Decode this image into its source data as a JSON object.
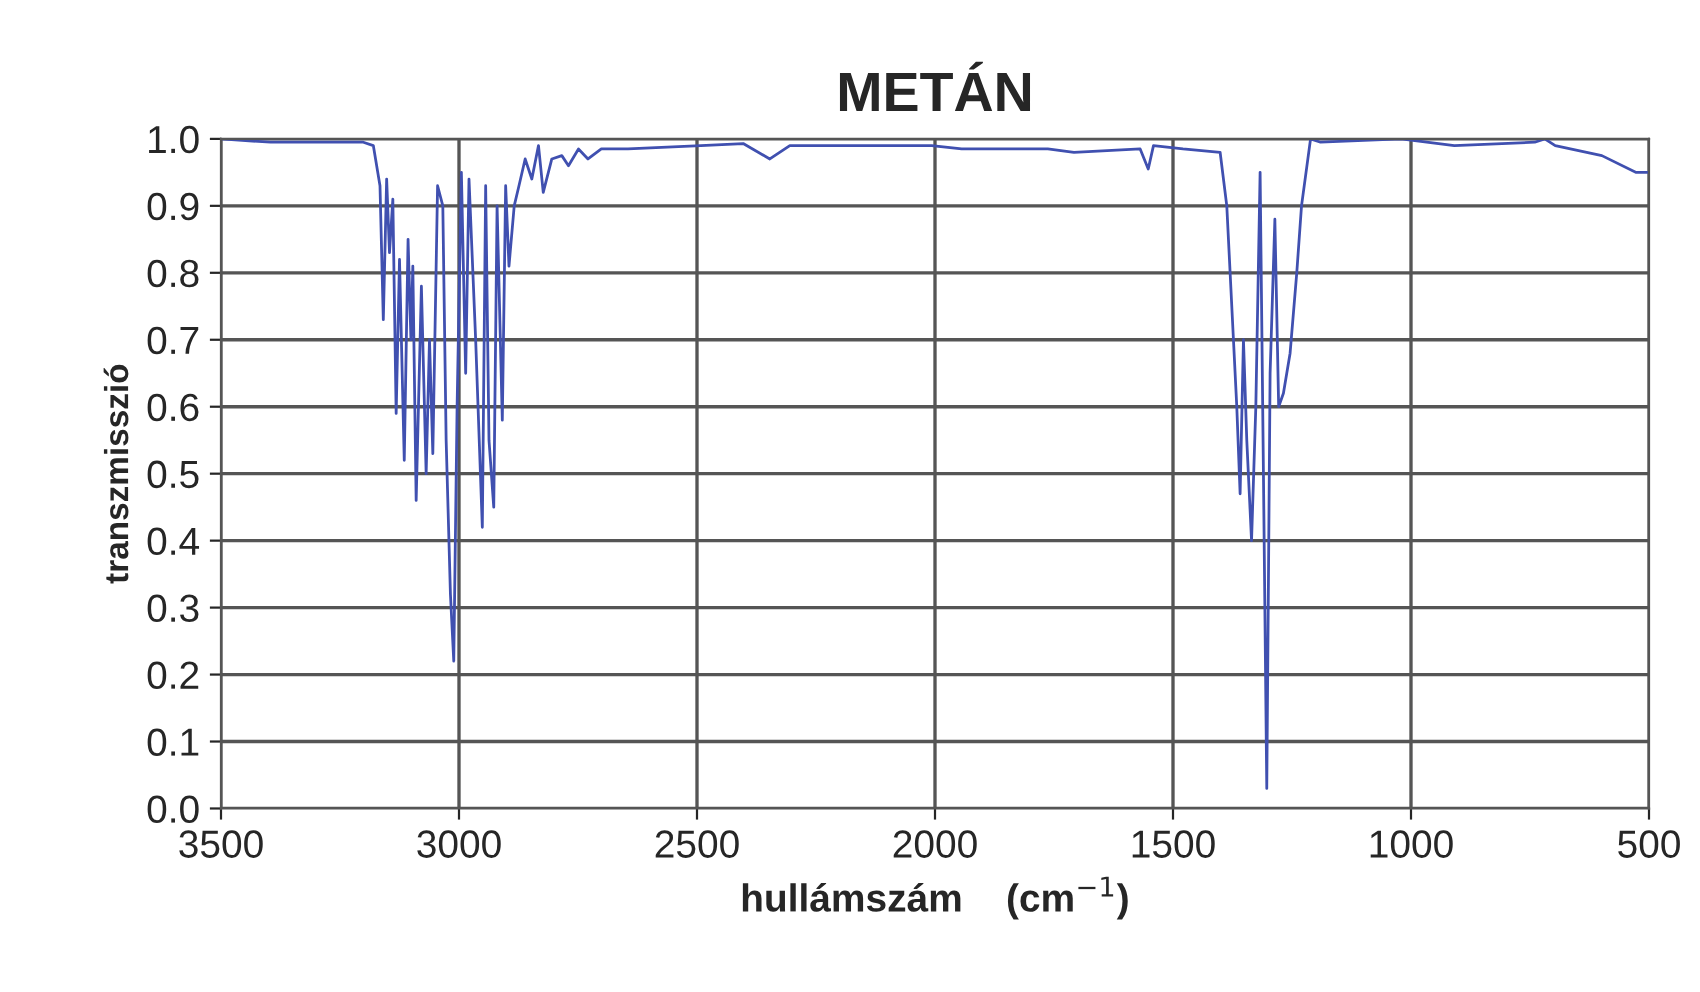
{
  "chart_data": {
    "type": "line",
    "title": "METÁN",
    "xlabel": "hullámszám    (cm$^{−1}$)",
    "ylabel": "transzmisszió",
    "xlim": [
      3500,
      500
    ],
    "xticks": [
      3500,
      3000,
      2500,
      2000,
      1500,
      1000,
      500
    ],
    "ylim": [
      0,
      1
    ],
    "yticks": [
      {
        "value": 0,
        "label": "0.0"
      },
      {
        "value": 0.1,
        "label": "0.1"
      },
      {
        "value": 0.2,
        "label": "0.2"
      },
      {
        "value": 0.3,
        "label": "0.3"
      },
      {
        "value": 0.4,
        "label": "0.4"
      },
      {
        "value": 0.5,
        "label": "0.5"
      },
      {
        "value": 0.6,
        "label": "0.6"
      },
      {
        "value": 0.7,
        "label": "0.7"
      },
      {
        "value": 0.8,
        "label": "0.8"
      },
      {
        "value": 0.9,
        "label": "0.9"
      },
      {
        "value": 1,
        "label": "1.0"
      }
    ],
    "grid": true,
    "marker": "none",
    "line_style": "solid",
    "series": [
      {
        "color": "#4050b0",
        "x": [
          3500,
          3396,
          3201,
          3180,
          3166,
          3159,
          3152,
          3146,
          3139,
          3132,
          3125,
          3115,
          3107,
          3101,
          3097,
          3090,
          3079,
          3069,
          3062,
          3055,
          3045,
          3034,
          3027,
          3018,
          3011,
          3004,
          2995,
          2986,
          2979,
          2965,
          2951,
          2944,
          2937,
          2927,
          2920,
          2909,
          2902,
          2895,
          2884,
          2874,
          2861,
          2847,
          2833,
          2823,
          2805,
          2784,
          2770,
          2749,
          2729,
          2701,
          2645,
          2492,
          2403,
          2347,
          2305,
          2125,
          2007,
          1944,
          1763,
          1708,
          1569,
          1552,
          1541,
          1479,
          1401,
          1387,
          1373,
          1366,
          1359,
          1352,
          1345,
          1335,
          1326,
          1317,
          1310,
          1303,
          1296,
          1286,
          1278,
          1268,
          1254,
          1240,
          1230,
          1211,
          1190,
          1021,
          909,
          740,
          719,
          697,
          599,
          528,
          500
        ],
        "values": [
          1.0,
          0.995,
          0.995,
          0.99,
          0.93,
          0.73,
          0.94,
          0.83,
          0.91,
          0.59,
          0.82,
          0.52,
          0.85,
          0.7,
          0.81,
          0.46,
          0.78,
          0.5,
          0.7,
          0.53,
          0.93,
          0.9,
          0.55,
          0.32,
          0.22,
          0.6,
          0.95,
          0.65,
          0.94,
          0.7,
          0.42,
          0.93,
          0.55,
          0.45,
          0.9,
          0.58,
          0.93,
          0.81,
          0.9,
          0.93,
          0.97,
          0.94,
          0.99,
          0.92,
          0.97,
          0.975,
          0.96,
          0.985,
          0.97,
          0.985,
          0.985,
          0.99,
          0.993,
          0.97,
          0.99,
          0.99,
          0.99,
          0.985,
          0.985,
          0.98,
          0.985,
          0.955,
          0.99,
          0.985,
          0.98,
          0.9,
          0.7,
          0.6,
          0.47,
          0.7,
          0.55,
          0.4,
          0.6,
          0.95,
          0.5,
          0.03,
          0.65,
          0.88,
          0.6,
          0.62,
          0.68,
          0.8,
          0.9,
          1.0,
          0.995,
          1.0,
          0.99,
          0.995,
          1.0,
          0.99,
          0.975,
          0.95,
          0.95
        ]
      }
    ]
  }
}
